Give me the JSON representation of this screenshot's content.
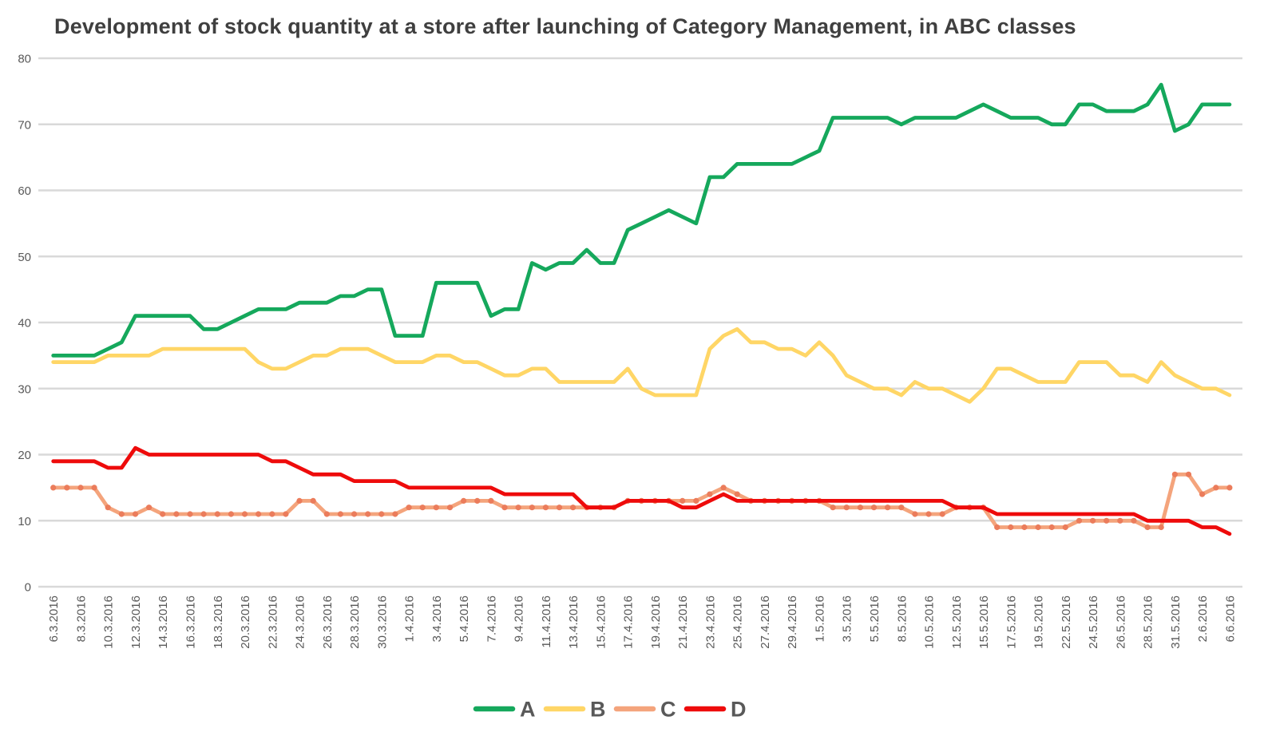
{
  "title": "Development of stock quantity at a store after launching of Category Management, in ABC classes",
  "colors": {
    "background": "#ffffff",
    "gridline": "#d9d9d9",
    "axis_text": "#595959",
    "title_text": "#3f3f3f",
    "series_a_green": "#15a85c",
    "series_b_yellow": "#ffd666",
    "series_c_salmon": "#f4a47c",
    "series_c_marker": "#eb7c5b",
    "series_d_red": "#ee0b0b"
  },
  "legend": {
    "items": [
      {
        "label": "A"
      },
      {
        "label": "B"
      },
      {
        "label": "C"
      },
      {
        "label": "D"
      }
    ]
  },
  "chart_data": {
    "type": "line",
    "title": "Development of stock quantity at a store after launching of Category Management, in ABC classes",
    "xlabel": "",
    "ylabel": "",
    "ylim": [
      0,
      80
    ],
    "grid": true,
    "legend_position": "bottom",
    "y_ticks": [
      0,
      10,
      20,
      30,
      40,
      50,
      60,
      70,
      80
    ],
    "n_points": 87,
    "points_per_tick": 2,
    "x_tick_labels": [
      "6.3.2016",
      "8.3.2016",
      "10.3.2016",
      "12.3.2016",
      "14.3.2016",
      "16.3.2016",
      "18.3.2016",
      "20.3.2016",
      "22.3.2016",
      "24.3.2016",
      "26.3.2016",
      "28.3.2016",
      "30.3.2016",
      "1.4.2016",
      "3.4.2016",
      "5.4.2016",
      "7.4.2016",
      "9.4.2016",
      "11.4.2016",
      "13.4.2016",
      "15.4.2016",
      "17.4.2016",
      "19.4.2016",
      "21.4.2016",
      "23.4.2016",
      "25.4.2016",
      "27.4.2016",
      "29.4.2016",
      "1.5.2016",
      "3.5.2016",
      "5.5.2016",
      "8.5.2016",
      "10.5.2016",
      "12.5.2016",
      "15.5.2016",
      "17.5.2016",
      "19.5.2016",
      "22.5.2016",
      "24.5.2016",
      "26.5.2016",
      "28.5.2016",
      "31.5.2016",
      "2.6.2016",
      "6.6.2016"
    ],
    "series": [
      {
        "name": "A",
        "color": "#15a85c",
        "markers": false,
        "values": [
          35,
          35,
          35,
          35,
          36,
          37,
          41,
          41,
          41,
          41,
          41,
          39,
          39,
          40,
          41,
          42,
          42,
          42,
          43,
          43,
          43,
          44,
          44,
          45,
          45,
          38,
          38,
          38,
          46,
          46,
          46,
          46,
          41,
          42,
          42,
          49,
          48,
          49,
          49,
          51,
          49,
          49,
          54,
          55,
          56,
          57,
          56,
          55,
          62,
          62,
          64,
          64,
          64,
          64,
          64,
          65,
          66,
          71,
          71,
          71,
          71,
          71,
          70,
          71,
          71,
          71,
          71,
          72,
          73,
          72,
          71,
          71,
          71,
          70,
          70,
          73,
          73,
          72,
          72,
          72,
          73,
          76,
          69,
          70,
          73,
          73,
          73
        ]
      },
      {
        "name": "B",
        "color": "#ffd666",
        "markers": false,
        "values": [
          34,
          34,
          34,
          34,
          35,
          35,
          35,
          35,
          36,
          36,
          36,
          36,
          36,
          36,
          36,
          34,
          33,
          33,
          34,
          35,
          35,
          36,
          36,
          36,
          35,
          34,
          34,
          34,
          35,
          35,
          34,
          34,
          33,
          32,
          32,
          33,
          33,
          31,
          31,
          31,
          31,
          31,
          33,
          30,
          29,
          29,
          29,
          29,
          36,
          38,
          39,
          37,
          37,
          36,
          36,
          35,
          37,
          35,
          32,
          31,
          30,
          30,
          29,
          31,
          30,
          30,
          29,
          28,
          30,
          33,
          33,
          32,
          31,
          31,
          31,
          34,
          34,
          34,
          32,
          32,
          31,
          34,
          32,
          31,
          30,
          30,
          29
        ]
      },
      {
        "name": "C",
        "color": "#f4a47c",
        "marker_color": "#eb7c5b",
        "markers": true,
        "values": [
          15,
          15,
          15,
          15,
          12,
          11,
          11,
          12,
          11,
          11,
          11,
          11,
          11,
          11,
          11,
          11,
          11,
          11,
          13,
          13,
          11,
          11,
          11,
          11,
          11,
          11,
          12,
          12,
          12,
          12,
          13,
          13,
          13,
          12,
          12,
          12,
          12,
          12,
          12,
          12,
          12,
          12,
          13,
          13,
          13,
          13,
          13,
          13,
          14,
          15,
          14,
          13,
          13,
          13,
          13,
          13,
          13,
          12,
          12,
          12,
          12,
          12,
          12,
          11,
          11,
          11,
          12,
          12,
          12,
          9,
          9,
          9,
          9,
          9,
          9,
          10,
          10,
          10,
          10,
          10,
          9,
          9,
          17,
          17,
          14,
          15,
          15
        ]
      },
      {
        "name": "D",
        "color": "#ee0b0b",
        "markers": false,
        "values": [
          19,
          19,
          19,
          19,
          18,
          18,
          21,
          20,
          20,
          20,
          20,
          20,
          20,
          20,
          20,
          20,
          19,
          19,
          18,
          17,
          17,
          17,
          16,
          16,
          16,
          16,
          15,
          15,
          15,
          15,
          15,
          15,
          15,
          14,
          14,
          14,
          14,
          14,
          14,
          12,
          12,
          12,
          13,
          13,
          13,
          13,
          12,
          12,
          13,
          14,
          13,
          13,
          13,
          13,
          13,
          13,
          13,
          13,
          13,
          13,
          13,
          13,
          13,
          13,
          13,
          13,
          12,
          12,
          12,
          11,
          11,
          11,
          11,
          11,
          11,
          11,
          11,
          11,
          11,
          11,
          10,
          10,
          10,
          10,
          9,
          9,
          8
        ]
      }
    ]
  }
}
